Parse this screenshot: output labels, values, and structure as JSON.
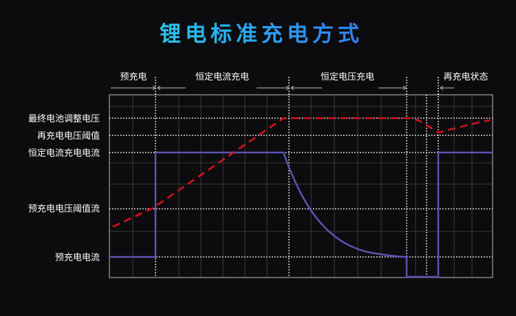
{
  "title": "锂电标准充电方式",
  "phases": [
    "预充电",
    "恒定电流充电",
    "恒定电压充电",
    "再充电状态"
  ],
  "y_labels": {
    "final_voltage": "最终电池调整电压",
    "recharge_threshold": "再充电电压阈值",
    "cc_current": "恒定电流充电电流",
    "precharge_threshold": "预充电电压阈值流",
    "precharge_current": "预充电电流"
  },
  "colors": {
    "background": "#0c0c0e",
    "title_gradient": [
      "#27c7ef",
      "#2f7ff2"
    ],
    "current_line": "#5a55b5",
    "voltage_line": "#e0111b",
    "grid": "#3b3b3e",
    "frame": "#bfbfbf",
    "marker": "#d8d8d8"
  }
}
